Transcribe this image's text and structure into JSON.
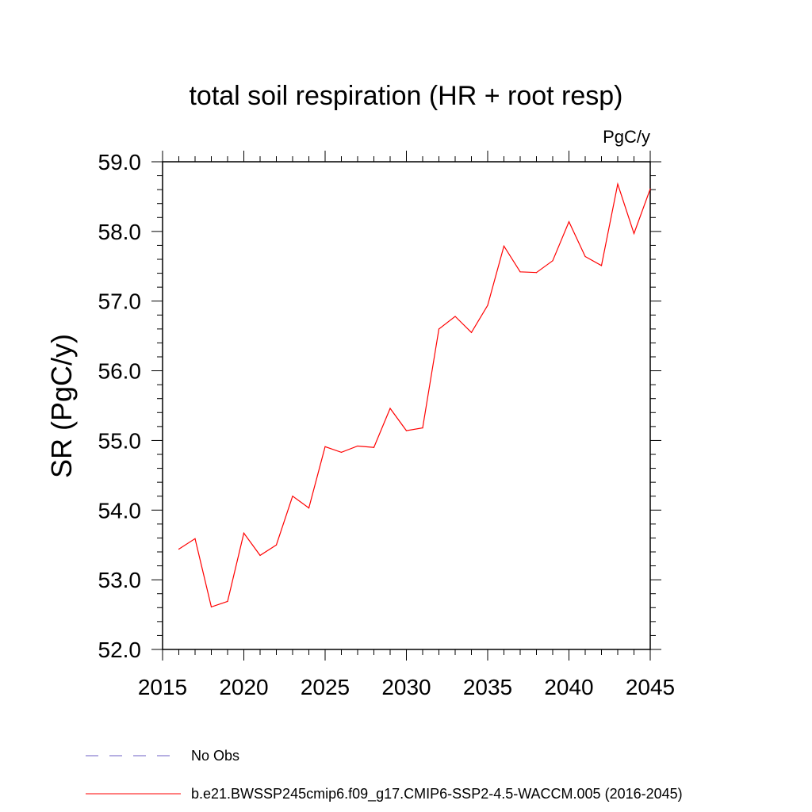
{
  "chart_data": {
    "type": "line",
    "title": "total soil respiration (HR + root resp)",
    "units": "PgC/y",
    "ylabel": "SR  (PgC/y)",
    "xlabel": "",
    "xlim": [
      2015,
      2045
    ],
    "ylim": [
      52.0,
      59.0
    ],
    "x_ticks": [
      "2015",
      "2020",
      "2025",
      "2030",
      "2035",
      "2040",
      "2045"
    ],
    "y_ticks": [
      "52.0",
      "53.0",
      "54.0",
      "55.0",
      "56.0",
      "57.0",
      "58.0",
      "59.0"
    ],
    "x": [
      2016,
      2017,
      2018,
      2019,
      2020,
      2021,
      2022,
      2023,
      2024,
      2025,
      2026,
      2027,
      2028,
      2029,
      2030,
      2031,
      2032,
      2033,
      2034,
      2035,
      2036,
      2037,
      2038,
      2039,
      2040,
      2041,
      2042,
      2043,
      2044,
      2045
    ],
    "series": [
      {
        "name": "b.e21.BWSSP245cmip6.f09_g17.CMIP6-SSP2-4.5-WACCM.005 (2016-2045)",
        "color": "#ff0000",
        "values": [
          53.44,
          53.59,
          52.61,
          52.69,
          53.67,
          53.35,
          53.5,
          54.2,
          54.03,
          54.91,
          54.83,
          54.92,
          54.9,
          55.46,
          55.14,
          55.18,
          56.6,
          56.78,
          56.55,
          56.94,
          57.79,
          57.42,
          57.41,
          57.58,
          58.14,
          57.64,
          57.51,
          58.68,
          57.97,
          58.61
        ]
      }
    ],
    "legend": [
      {
        "label": "No Obs",
        "color": "#8a7fd0",
        "style": "dashed"
      },
      {
        "label": "b.e21.BWSSP245cmip6.f09_g17.CMIP6-SSP2-4.5-WACCM.005 (2016-2045)",
        "color": "#ff0000",
        "style": "solid"
      }
    ],
    "legend_position": "bottom-left"
  }
}
